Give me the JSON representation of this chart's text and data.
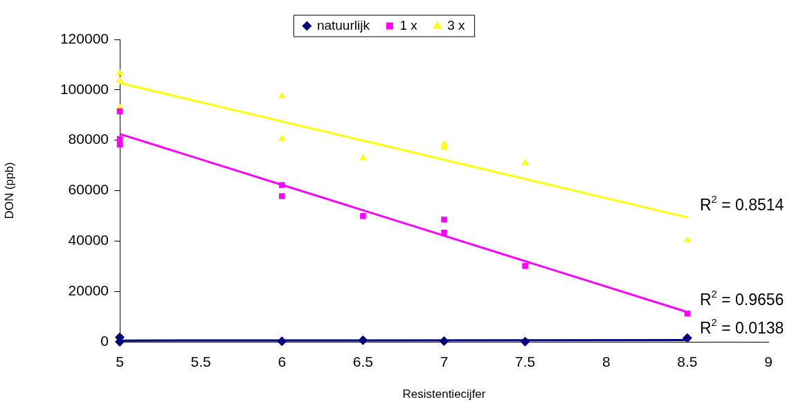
{
  "chart_data": {
    "type": "scatter",
    "xlabel": "Resistentiecijfer",
    "ylabel": "DON (ppb)",
    "xlim": [
      5,
      9
    ],
    "xticks": [
      5,
      5.5,
      6,
      6.5,
      7,
      7.5,
      8,
      8.5,
      9
    ],
    "ylim": [
      0,
      120000
    ],
    "yticks": [
      0,
      20000,
      40000,
      60000,
      80000,
      100000,
      120000
    ],
    "grid": false,
    "legend": "top",
    "series": [
      {
        "name": "natuurlijk",
        "color": "#000080",
        "marker": "diamond",
        "x": [
          5,
          5,
          6,
          6.5,
          7,
          7.5,
          8.5
        ],
        "values": [
          1800,
          0,
          200,
          600,
          300,
          100,
          1500
        ]
      },
      {
        "name": "1 x",
        "color": "#ff00ff",
        "marker": "square",
        "x": [
          5,
          5,
          5,
          6,
          6,
          6.5,
          7,
          7,
          7.5,
          8.5
        ],
        "values": [
          91500,
          80500,
          78300,
          62200,
          57800,
          49900,
          48500,
          43300,
          30100,
          11200
        ]
      },
      {
        "name": "3 x",
        "color": "#ffff00",
        "marker": "triangle",
        "x": [
          5,
          5,
          5,
          6,
          6,
          6.5,
          7,
          7,
          7.5,
          8.5
        ],
        "values": [
          106600,
          103600,
          92900,
          97500,
          80500,
          72900,
          78400,
          77000,
          71000,
          40300
        ]
      },
      {
        "type": "line",
        "color": "#ffff00",
        "marker": "none",
        "x": [
          5,
          8.5
        ],
        "values": [
          102700,
          49400
        ]
      },
      {
        "type": "line",
        "color": "#ff00ff",
        "marker": "none",
        "x": [
          5,
          8.5
        ],
        "values": [
          82500,
          11800
        ]
      },
      {
        "type": "line",
        "color": "#000080",
        "marker": "none",
        "x": [
          5,
          8.5
        ],
        "values": [
          500,
          700
        ]
      }
    ],
    "annotations": [
      "R$^{2}$ = 0.8514",
      "R$^{2}$ = 0.9656",
      "R$^{2}$ = 0.0138"
    ]
  }
}
